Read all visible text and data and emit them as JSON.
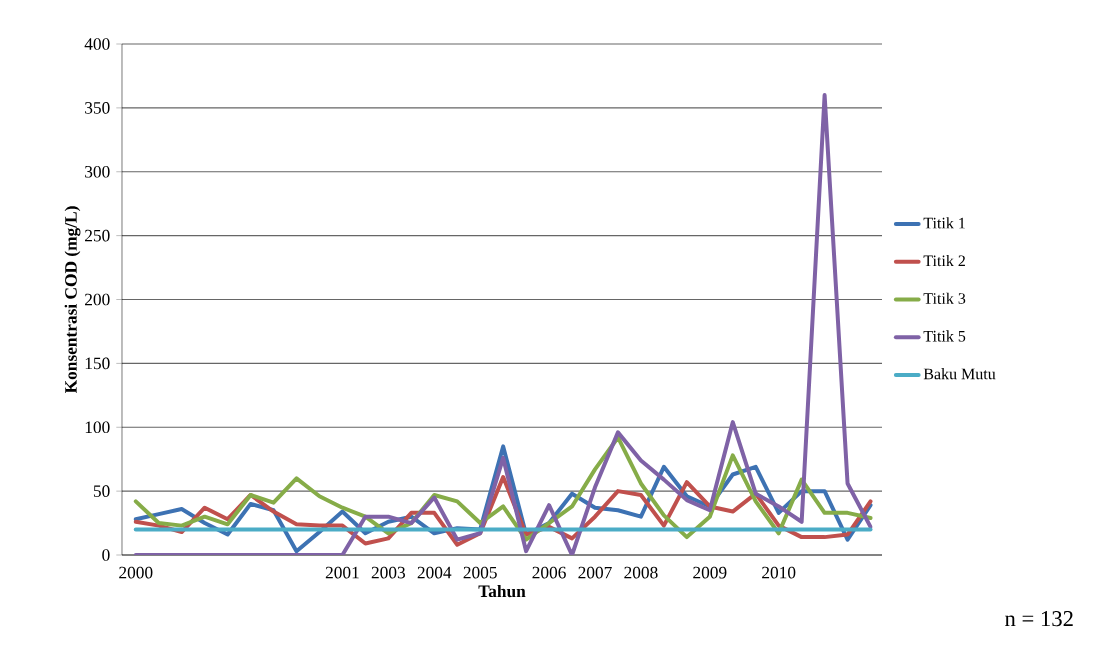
{
  "chart_data": {
    "type": "line",
    "xlabel": "Tahun",
    "ylabel": "Konsentrasi COD (mg/L)",
    "categories": [
      "2000",
      null,
      null,
      null,
      null,
      null,
      null,
      null,
      null,
      "2001",
      null,
      "2003",
      null,
      "2004",
      null,
      "2005",
      null,
      null,
      "2006",
      null,
      "2007",
      null,
      "2008",
      null,
      null,
      "2009",
      null,
      null,
      "2010",
      null,
      null,
      null,
      null
    ],
    "series": [
      {
        "name": "Titik 1",
        "color": "#3d72b3",
        "values": [
          28,
          32,
          36,
          25,
          16,
          40,
          35,
          3,
          18,
          34,
          17,
          26,
          30,
          17,
          21,
          20,
          85,
          16,
          25,
          48,
          37,
          35,
          30,
          69,
          46,
          38,
          63,
          69,
          33,
          50,
          50,
          12,
          39
        ]
      },
      {
        "name": "Titik 2",
        "color": "#c0504d",
        "values": [
          26,
          23,
          18,
          37,
          28,
          47,
          34,
          24,
          23,
          23,
          9,
          13,
          33,
          33,
          8,
          17,
          61,
          16,
          22,
          13,
          30,
          50,
          47,
          23,
          57,
          38,
          34,
          48,
          23,
          14,
          14,
          16,
          42
        ]
      },
      {
        "name": "Titik 3",
        "color": "#86ac48",
        "values": [
          42,
          25,
          23,
          30,
          24,
          47,
          41,
          60,
          46,
          37,
          30,
          17,
          25,
          47,
          42,
          25,
          38,
          12,
          25,
          38,
          67,
          92,
          56,
          31,
          14,
          30,
          78,
          42,
          17,
          59,
          33,
          33,
          29
        ]
      },
      {
        "name": "Titik 5",
        "color": "#7f62a6",
        "values": [
          0,
          0,
          0,
          0,
          0,
          0,
          0,
          0,
          0,
          0,
          30,
          30,
          25,
          45,
          12,
          17,
          76,
          3,
          39,
          0,
          53,
          96,
          74,
          59,
          43,
          35,
          104,
          48,
          38,
          26,
          360,
          56,
          22
        ]
      },
      {
        "name": "Baku Mutu",
        "color": "#4bacc6",
        "values": [
          20,
          20,
          20,
          20,
          20,
          20,
          20,
          20,
          20,
          20,
          20,
          20,
          20,
          20,
          20,
          20,
          20,
          20,
          20,
          20,
          20,
          20,
          20,
          20,
          20,
          20,
          20,
          20,
          20,
          20,
          20,
          20,
          20
        ]
      }
    ],
    "ylim": [
      0,
      400
    ],
    "yticks": [
      0,
      50,
      100,
      150,
      200,
      250,
      300,
      350,
      400
    ],
    "grid": "y",
    "legend": "right",
    "annotations": [
      "n = 132"
    ]
  }
}
